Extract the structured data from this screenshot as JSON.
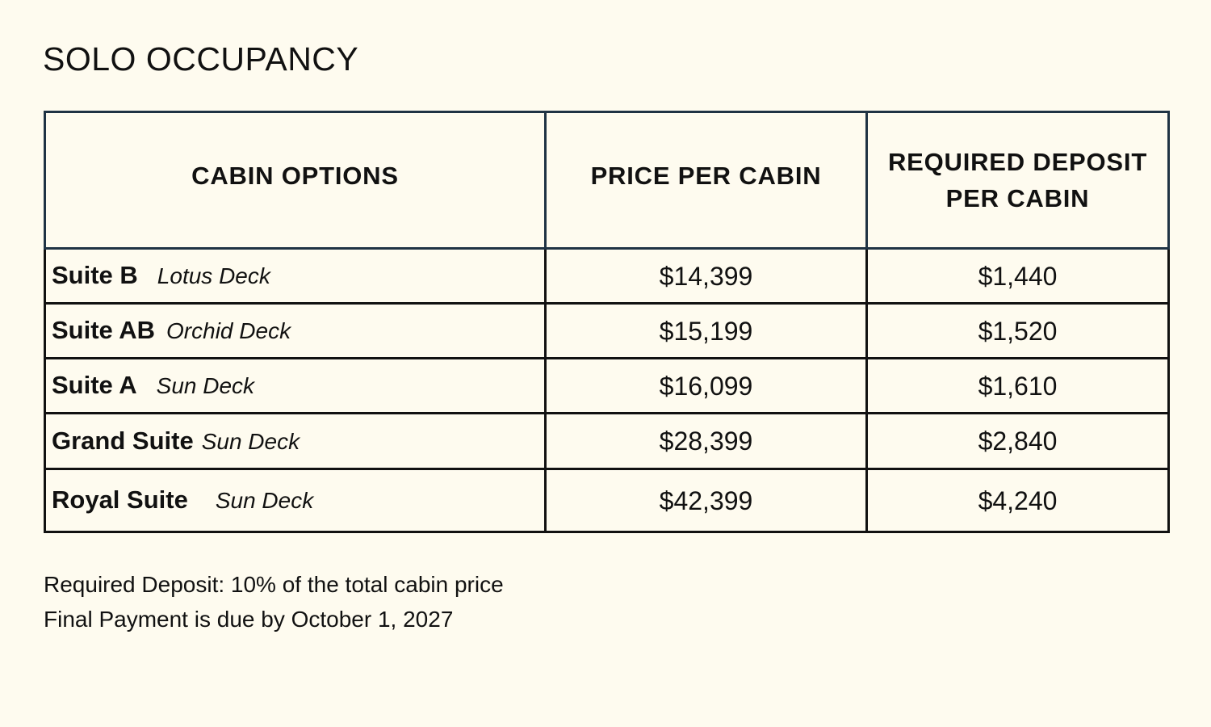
{
  "page": {
    "title": "SOLO OCCUPANCY"
  },
  "table": {
    "headers": {
      "cabin_options": "CABIN OPTIONS",
      "price_per_cabin": "PRICE PER CABIN",
      "deposit_line1": "REQUIRED DEPOSIT",
      "deposit_line2": "PER CABIN"
    },
    "rows": [
      {
        "cabin": "Suite B",
        "deck": "Lotus Deck",
        "price": "$14,399",
        "deposit": "$1,440"
      },
      {
        "cabin": "Suite AB",
        "deck": "Orchid Deck",
        "price": "$15,199",
        "deposit": "$1,520"
      },
      {
        "cabin": "Suite A",
        "deck": "Sun Deck",
        "price": "$16,099",
        "deposit": "$1,610"
      },
      {
        "cabin": "Grand Suite",
        "deck": "Sun Deck",
        "price": "$28,399",
        "deposit": "$2,840"
      },
      {
        "cabin": "Royal Suite",
        "deck": "Sun Deck",
        "price": "$42,399",
        "deposit": "$4,240"
      }
    ]
  },
  "notes": {
    "deposit_note": "Required Deposit: 10% of the total cabin price",
    "final_payment_note": "Final Payment is due by October 1, 2027"
  },
  "colors": {
    "background": "#fefbef",
    "header_border": "#1f3344",
    "text": "#111111"
  }
}
